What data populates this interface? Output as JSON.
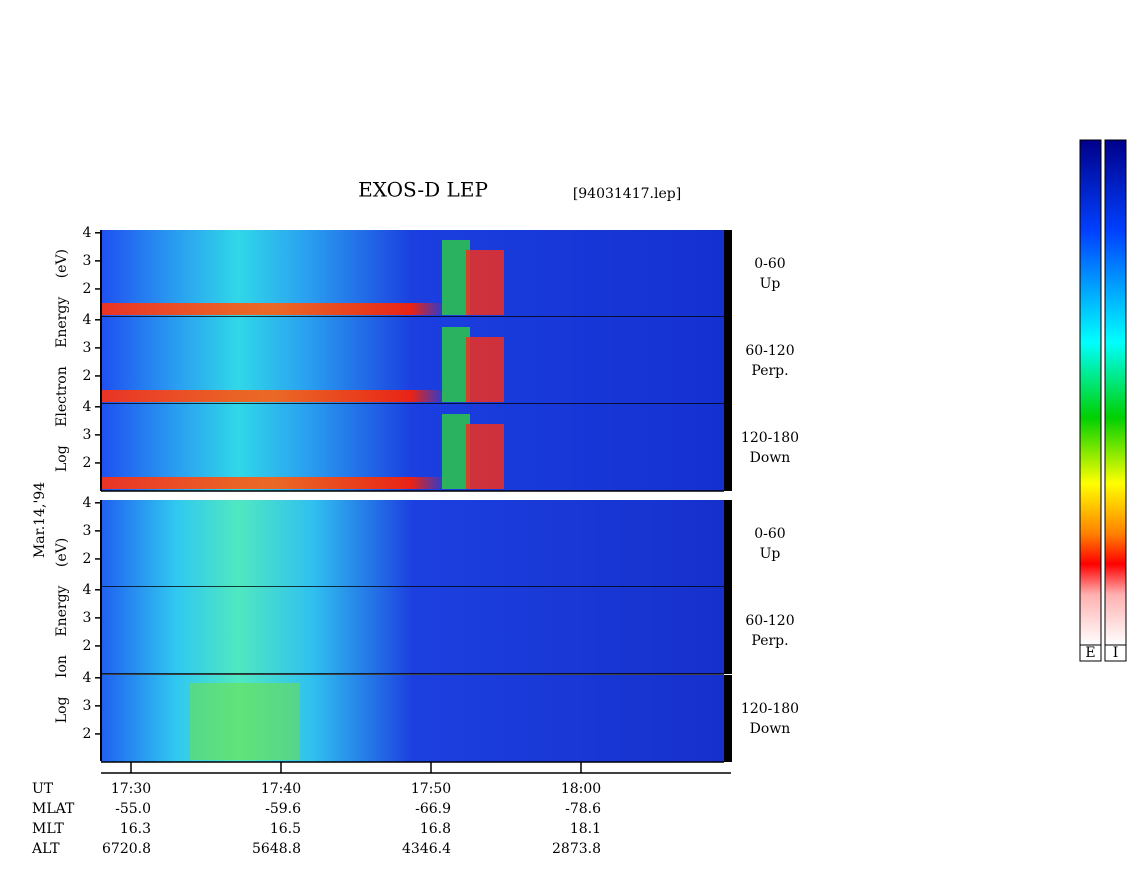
{
  "chart_data": {
    "type": "spectrogram",
    "title": "EXOS-D LEP",
    "file": "[94031417.lep]",
    "date": "Mar.14,'94",
    "groups": [
      {
        "ylabel": "Log Electron Energy (eV)",
        "panels": [
          {
            "angle": "0-60",
            "direction": "Up"
          },
          {
            "angle": "60-120",
            "direction": "Perp."
          },
          {
            "angle": "120-180",
            "direction": "Down"
          }
        ]
      },
      {
        "ylabel": "Log Ion Energy (eV)",
        "panels": [
          {
            "angle": "0-60",
            "direction": "Up"
          },
          {
            "angle": "60-120",
            "direction": "Perp."
          },
          {
            "angle": "120-180",
            "direction": "Down"
          }
        ]
      }
    ],
    "ylim": [
      1,
      4.1
    ],
    "yticks": [
      2,
      3,
      4
    ],
    "xlim": [
      1048,
      1090
    ],
    "xticks": [
      {
        "value": 1050,
        "label": "17:30"
      },
      {
        "value": 1060,
        "label": "17:40"
      },
      {
        "value": 1070,
        "label": "17:50"
      },
      {
        "value": 1080,
        "label": "18:00"
      }
    ],
    "ephemeris": [
      {
        "name": "UT"
      },
      {
        "name": "MLAT",
        "values": [
          "-55.0",
          "-59.6",
          "-66.9",
          "-78.6"
        ]
      },
      {
        "name": "MLT",
        "values": [
          "16.3",
          "16.5",
          "16.8",
          "18.1"
        ]
      },
      {
        "name": "ALT",
        "values": [
          "6720.8",
          "5648.8",
          "4346.4",
          "2873.8"
        ]
      }
    ],
    "colorbars": [
      "E",
      "I"
    ]
  }
}
